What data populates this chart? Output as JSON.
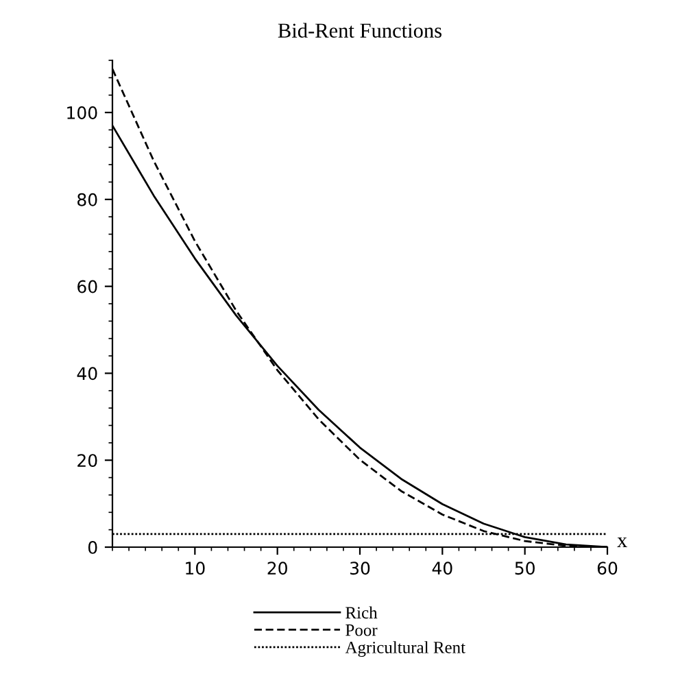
{
  "chart_data": {
    "type": "line",
    "title": "Bid-Rent Functions",
    "xlabel": "x",
    "x": [
      0,
      5,
      10,
      15,
      20,
      25,
      30,
      35,
      40,
      45,
      50,
      55,
      60
    ],
    "series": [
      {
        "name": "Rich",
        "color": "#000000",
        "line_style": "solid",
        "values": [
          97,
          80.9,
          66.4,
          53.3,
          41.7,
          31.6,
          22.9,
          15.7,
          9.9,
          5.4,
          2.3,
          0.6,
          0
        ]
      },
      {
        "name": "Poor",
        "color": "#000000",
        "line_style": "dashed",
        "values": [
          110,
          88.9,
          70.4,
          54.4,
          40.7,
          29.4,
          20.1,
          12.9,
          7.5,
          3.7,
          1.4,
          0.3,
          0
        ]
      },
      {
        "name": "Agricultural Rent",
        "color": "#000000",
        "line_style": "dotted",
        "x": [
          0,
          60
        ],
        "values": [
          3,
          3
        ]
      }
    ],
    "xlim": [
      0,
      60
    ],
    "ylim": [
      0,
      112
    ],
    "xticks": [
      10,
      20,
      30,
      40,
      50,
      60
    ],
    "yticks": [
      0,
      20,
      40,
      60,
      80,
      100
    ],
    "grid": false,
    "legend": "bottom",
    "marker": "none"
  }
}
